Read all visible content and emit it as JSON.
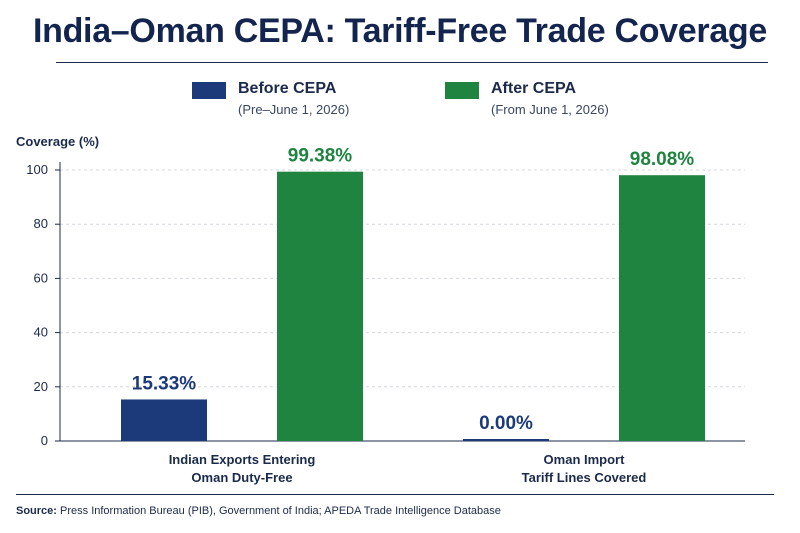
{
  "page": {
    "title": "India–Oman CEPA: Tariff-Free Trade Coverage",
    "source_label": "Source:",
    "source_text": "Press Information Bureau (PIB), Government of India; APEDA Trade Intelligence Database"
  },
  "chart_data": {
    "type": "bar",
    "title": "India–Oman CEPA: Tariff-Free Trade Coverage",
    "ylabel": "Coverage (%)",
    "xlabel": "",
    "ylim": [
      0,
      100
    ],
    "yticks": [
      0,
      20,
      40,
      60,
      80,
      100
    ],
    "grid": true,
    "legend_position": "top-center",
    "categories": [
      [
        "Indian Exports Entering",
        "Oman Duty-Free"
      ],
      [
        "Oman Import",
        "Tariff Lines Covered"
      ]
    ],
    "series": [
      {
        "name": "Before CEPA",
        "subtitle": "(Pre–June 1, 2026)",
        "color": "#1c3a7a",
        "values": [
          15.33,
          0.0
        ],
        "labels": [
          "15.33%",
          "0.00%"
        ]
      },
      {
        "name": "After CEPA",
        "subtitle": "(From June 1, 2026)",
        "color": "#1f8440",
        "values": [
          99.38,
          98.08
        ],
        "labels": [
          "99.38%",
          "98.08%"
        ]
      }
    ]
  }
}
